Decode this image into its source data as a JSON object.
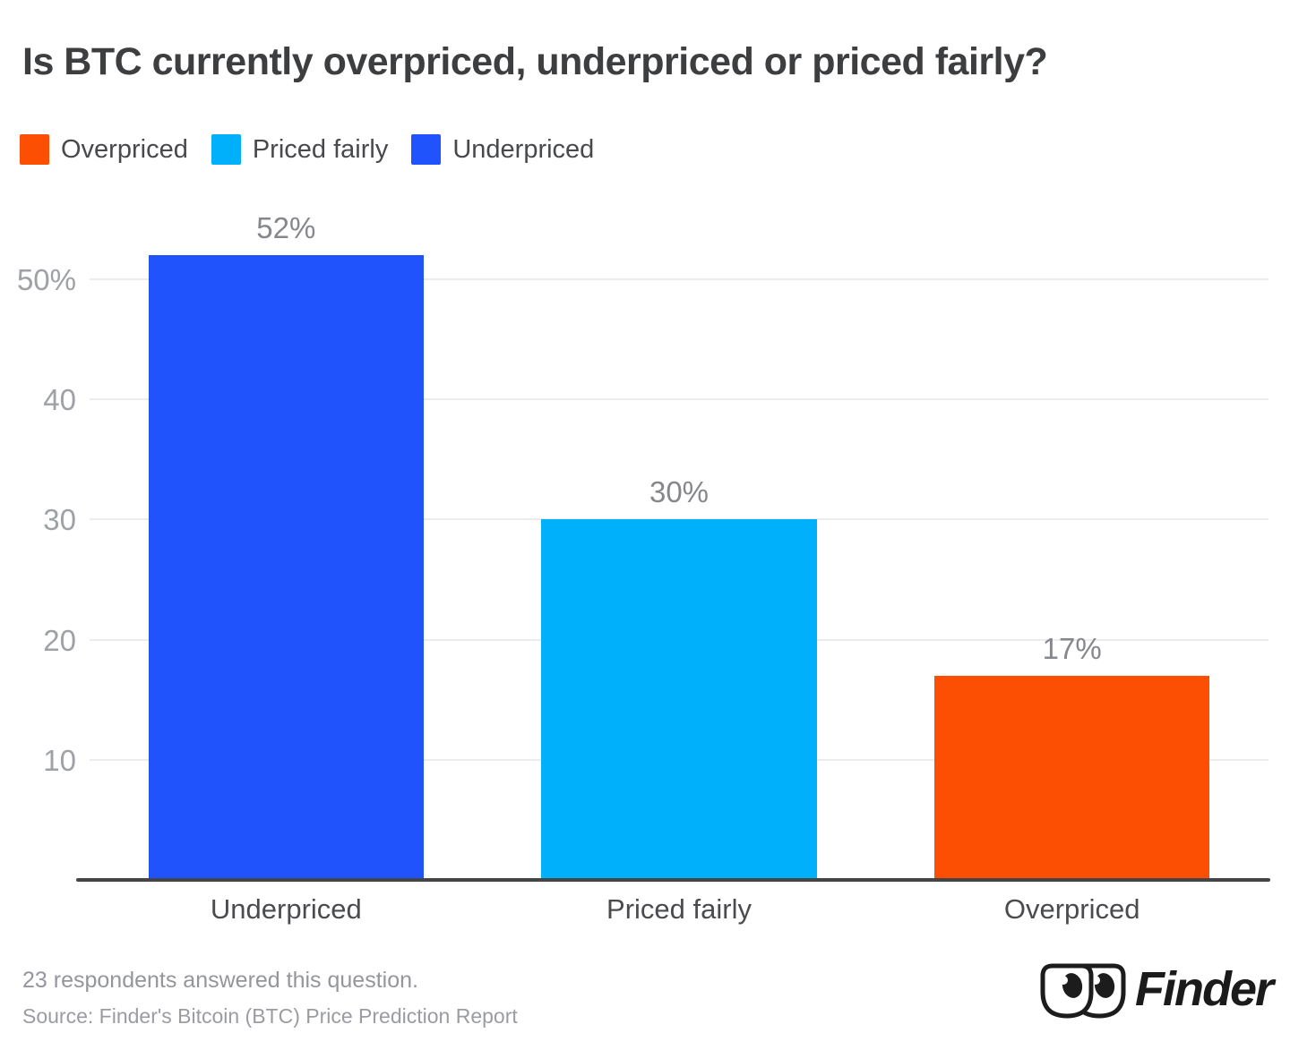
{
  "chart_data": {
    "type": "bar",
    "title": "Is BTC currently overpriced, underpriced or priced fairly?",
    "categories": [
      "Underpriced",
      "Priced fairly",
      "Overpriced"
    ],
    "values": [
      52,
      30,
      17
    ],
    "value_labels": [
      "52%",
      "30%",
      "17%"
    ],
    "colors": [
      "#2053FB",
      "#01B0FB",
      "#FC4F03"
    ],
    "xlabel": "",
    "ylabel": "",
    "ylim": [
      0,
      54.6
    ],
    "yticks": [
      {
        "value": 10,
        "label": "10"
      },
      {
        "value": 20,
        "label": "20"
      },
      {
        "value": 30,
        "label": "30"
      },
      {
        "value": 40,
        "label": "40"
      },
      {
        "value": 50,
        "label": "50%"
      }
    ],
    "grid": "horizontal",
    "legend_position": "top-left",
    "legend": [
      {
        "label": "Overpriced",
        "color": "#FC4F03"
      },
      {
        "label": "Priced fairly",
        "color": "#01B0FB"
      },
      {
        "label": "Underpriced",
        "color": "#2053FB"
      }
    ]
  },
  "footer": {
    "note": "23 respondents answered this question.",
    "source": "Source: Finder's Bitcoin (BTC) Price Prediction Report"
  },
  "branding": {
    "logo_text": "Finder"
  }
}
